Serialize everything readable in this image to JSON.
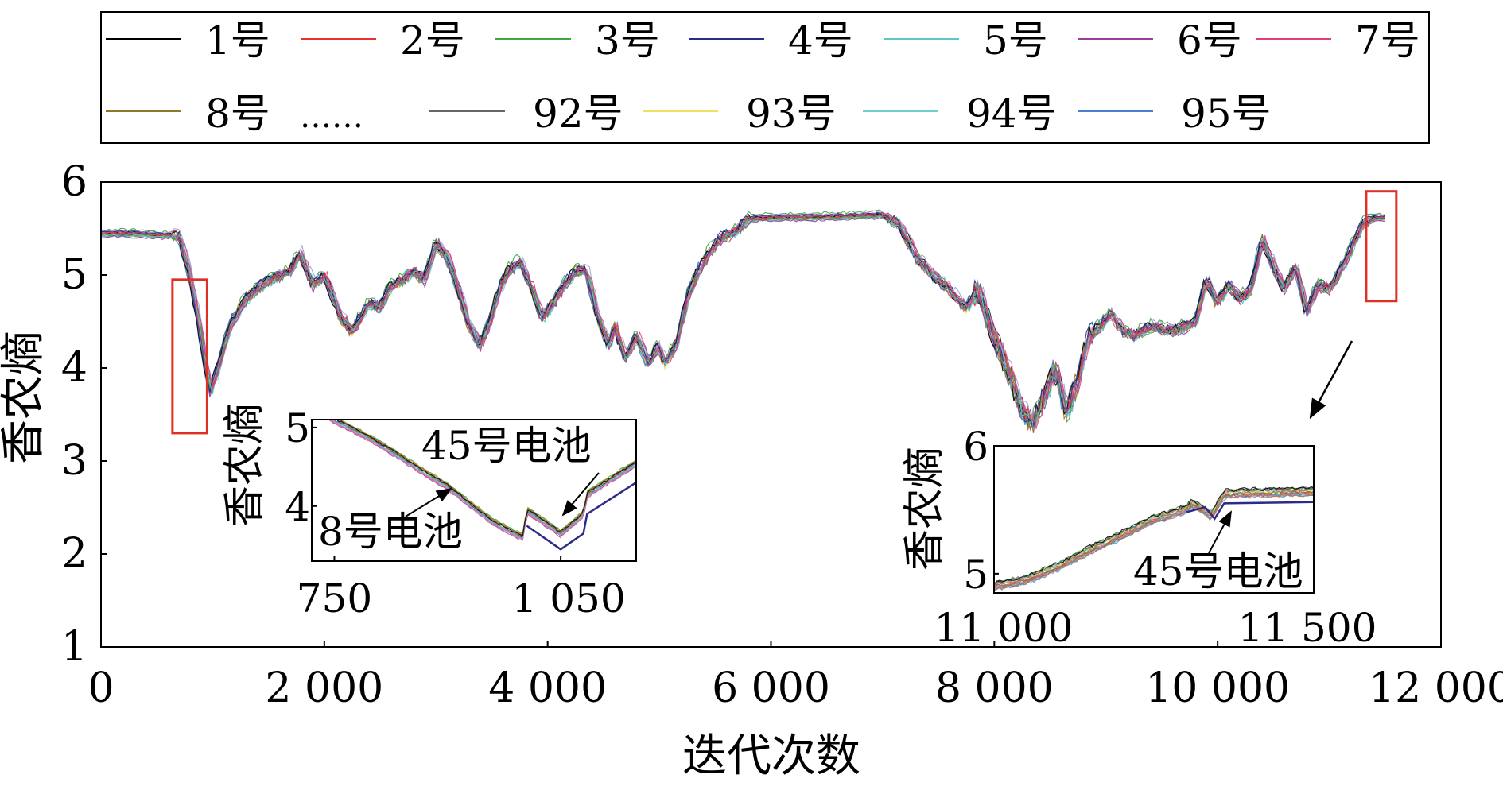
{
  "chart_data": {
    "type": "line",
    "ylabel": "香农熵",
    "xlabel": "迭代次数",
    "xlim": [
      0,
      12000
    ],
    "ylim": [
      1,
      6
    ],
    "x_ticks": [
      0,
      2000,
      4000,
      6000,
      8000,
      10000,
      12000
    ],
    "x_tick_labels": [
      "0",
      "2 000",
      "4 000",
      "6 000",
      "8 000",
      "10 000",
      "12 000"
    ],
    "y_ticks": [
      1,
      2,
      3,
      4,
      5,
      6
    ],
    "y_tick_labels": [
      "1",
      "2",
      "3",
      "4",
      "5",
      "6"
    ],
    "legend": {
      "placement": "top",
      "ellipsis": "……",
      "entries": [
        {
          "label": "1号",
          "color": "#000000"
        },
        {
          "label": "2号",
          "color": "#e8322e"
        },
        {
          "label": "3号",
          "color": "#3aa83a"
        },
        {
          "label": "4号",
          "color": "#2b2b8c"
        },
        {
          "label": "5号",
          "color": "#5ec5c8"
        },
        {
          "label": "6号",
          "color": "#9b3d9b"
        },
        {
          "label": "7号",
          "color": "#e0407a"
        },
        {
          "label": "8号",
          "color": "#8c7a2c"
        },
        {
          "label": "92号",
          "color": "#666666"
        },
        {
          "label": "93号",
          "color": "#f0e060"
        },
        {
          "label": "94号",
          "color": "#70d0d0"
        },
        {
          "label": "95号",
          "color": "#4a7fd0"
        }
      ]
    },
    "base_curve": {
      "x": [
        0,
        300,
        700,
        780,
        860,
        930,
        980,
        1050,
        1150,
        1300,
        1500,
        1700,
        1780,
        1900,
        2000,
        2150,
        2250,
        2400,
        2500,
        2600,
        2700,
        2800,
        2900,
        3000,
        3100,
        3200,
        3300,
        3400,
        3500,
        3550,
        3650,
        3750,
        3850,
        3950,
        4050,
        4150,
        4250,
        4350,
        4450,
        4550,
        4600,
        4700,
        4800,
        4900,
        5000,
        5050,
        5150,
        5250,
        5350,
        5450,
        5550,
        5650,
        5800,
        5900,
        6000,
        6500,
        7000,
        7150,
        7300,
        7450,
        7600,
        7750,
        7850,
        7950,
        8050,
        8150,
        8250,
        8350,
        8450,
        8550,
        8650,
        8750,
        8850,
        8950,
        9050,
        9150,
        9250,
        9400,
        9600,
        9800,
        9900,
        10000,
        10100,
        10200,
        10300,
        10400,
        10500,
        10600,
        10700,
        10800,
        10900,
        11000,
        11100,
        11200,
        11300,
        11400,
        11500
      ],
      "y": [
        5.45,
        5.45,
        5.42,
        5.1,
        4.6,
        4.1,
        3.75,
        4.0,
        4.45,
        4.75,
        4.95,
        5.05,
        5.25,
        4.9,
        5.0,
        4.55,
        4.4,
        4.7,
        4.65,
        4.9,
        4.95,
        5.05,
        4.95,
        5.35,
        5.2,
        4.85,
        4.45,
        4.25,
        4.55,
        4.8,
        5.05,
        5.15,
        4.9,
        4.55,
        4.7,
        4.9,
        5.05,
        5.05,
        4.55,
        4.25,
        4.45,
        4.1,
        4.35,
        4.05,
        4.25,
        4.05,
        4.25,
        4.75,
        5.05,
        5.25,
        5.4,
        5.45,
        5.6,
        5.62,
        5.62,
        5.63,
        5.65,
        5.55,
        5.2,
        5.0,
        4.85,
        4.65,
        4.85,
        4.5,
        4.2,
        3.9,
        3.55,
        3.4,
        3.7,
        4.0,
        3.5,
        3.9,
        4.35,
        4.45,
        4.6,
        4.4,
        4.35,
        4.45,
        4.4,
        4.5,
        4.95,
        4.7,
        4.9,
        4.75,
        4.85,
        5.4,
        5.1,
        4.85,
        5.1,
        4.6,
        4.9,
        4.85,
        5.05,
        5.3,
        5.55,
        5.62,
        5.62
      ]
    },
    "annotations": [
      {
        "text": "8号电池"
      },
      {
        "text": "45号电池"
      },
      {
        "text": "45号电池"
      }
    ],
    "inset_left": {
      "ylabel": "香农熵",
      "xlim": [
        720,
        1150
      ],
      "ylim": [
        3.3,
        5.1
      ],
      "x_ticks": [
        750,
        1050
      ],
      "x_tick_labels": [
        "750",
        "1 050"
      ],
      "y_ticks": [
        4,
        5
      ],
      "y_tick_labels": [
        "4",
        "5"
      ],
      "x": [
        720,
        800,
        900,
        960,
        1000,
        1005,
        1050,
        1080,
        1085,
        1150
      ],
      "y": [
        5.25,
        4.85,
        4.25,
        3.8,
        3.6,
        3.95,
        3.65,
        3.9,
        4.15,
        4.55
      ]
    },
    "inset_right": {
      "ylabel": "香农熵",
      "xlim": [
        11000,
        11500
      ],
      "ylim": [
        4.85,
        6.0
      ],
      "x_ticks": [
        11000,
        11500
      ],
      "x_tick_labels": [
        "11 000",
        "11 500"
      ],
      "y_ticks": [
        5,
        6
      ],
      "y_tick_labels": [
        "5",
        "6"
      ],
      "x": [
        11000,
        11050,
        11100,
        11150,
        11200,
        11250,
        11300,
        11310,
        11340,
        11360,
        11400,
        11500
      ],
      "y": [
        4.9,
        4.95,
        5.05,
        5.18,
        5.3,
        5.42,
        5.5,
        5.55,
        5.45,
        5.62,
        5.63,
        5.64
      ]
    },
    "highlight_color": "#e03025"
  }
}
